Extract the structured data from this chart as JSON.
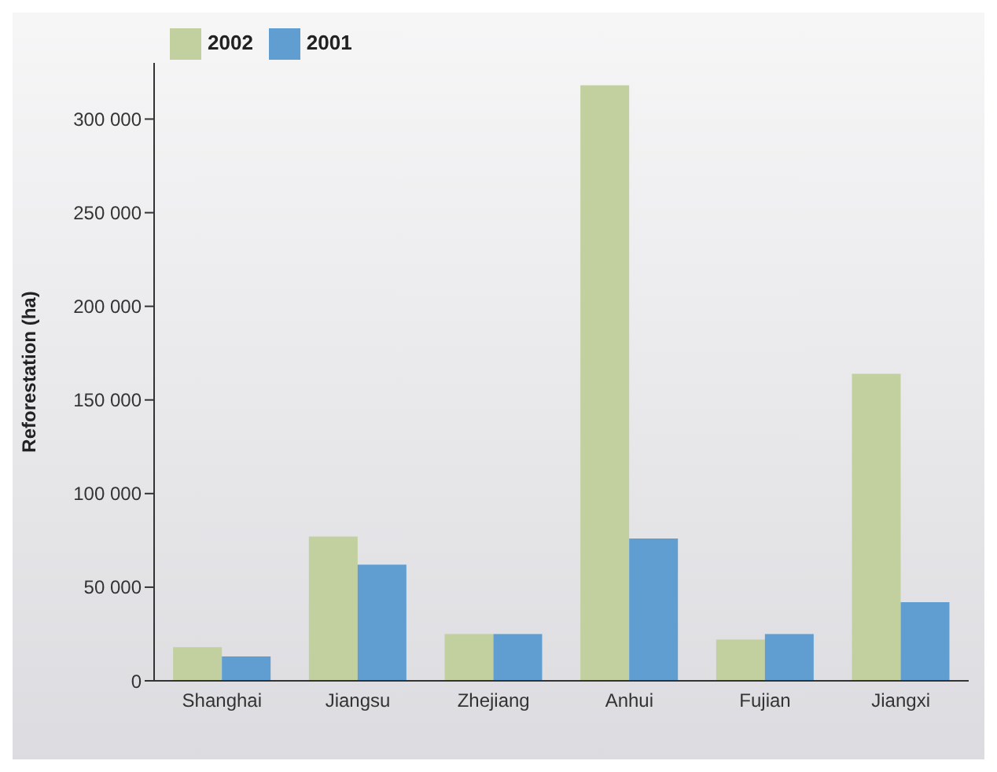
{
  "chart_data": {
    "type": "bar",
    "ylabel": "Reforestation (ha)",
    "categories": [
      "Shanghai",
      "Jiangsu",
      "Zhejiang",
      "Anhui",
      "Fujian",
      "Jiangxi"
    ],
    "series": [
      {
        "name": "2002",
        "color": "#c2cf9e",
        "values": [
          18000,
          77000,
          25000,
          318000,
          22000,
          164000
        ]
      },
      {
        "name": "2001",
        "color": "#609ed2",
        "values": [
          13000,
          62000,
          25000,
          76000,
          25000,
          42000
        ]
      }
    ],
    "ylim": [
      0,
      330000
    ],
    "yticks": [
      {
        "value": 0,
        "label": "0"
      },
      {
        "value": 50000,
        "label": "50 000"
      },
      {
        "value": 100000,
        "label": "100 000"
      },
      {
        "value": 150000,
        "label": "150 000"
      },
      {
        "value": 200000,
        "label": "200 000"
      },
      {
        "value": 250000,
        "label": "250 000"
      },
      {
        "value": 300000,
        "label": "300 000"
      }
    ],
    "legend": "top left",
    "grid": false
  }
}
